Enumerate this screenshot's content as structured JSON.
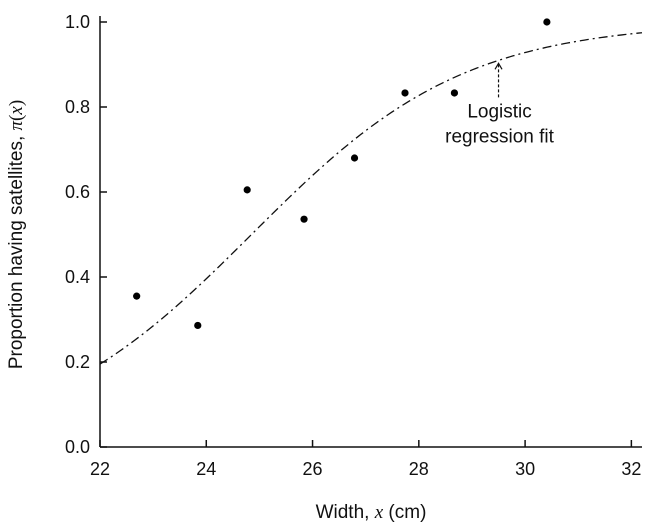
{
  "chart_data": {
    "type": "scatter",
    "xlabel_prefix": "Width, ",
    "xlabel_var": "x",
    "xlabel_suffix": " (cm)",
    "ylabel_prefix": "Proportion having satellites, ",
    "ylabel_func": "π",
    "ylabel_open": "(",
    "ylabel_var": "x",
    "ylabel_close": ")",
    "xlim": [
      22,
      32.2
    ],
    "ylim": [
      0,
      1.0
    ],
    "x_ticks": [
      22,
      24,
      26,
      28,
      30,
      32
    ],
    "y_ticks": [
      0.0,
      0.2,
      0.4,
      0.6,
      0.8,
      1.0
    ],
    "x_tick_labels": [
      "22",
      "24",
      "26",
      "28",
      "30",
      "32"
    ],
    "y_tick_labels": [
      "0.0",
      "0.2",
      "0.4",
      "0.6",
      "0.8",
      "1.0"
    ],
    "points": {
      "x": [
        22.69,
        23.84,
        24.77,
        25.84,
        26.79,
        27.74,
        28.67,
        30.41
      ],
      "y": [
        0.355,
        0.286,
        0.605,
        0.536,
        0.68,
        0.833,
        0.833,
        1.0
      ]
    },
    "fit": {
      "model": "logistic",
      "intercept": -12.351,
      "slope": 0.497
    },
    "annotation": {
      "lines": [
        "Logistic",
        "regression fit"
      ],
      "points_to_x": 29.5
    }
  }
}
